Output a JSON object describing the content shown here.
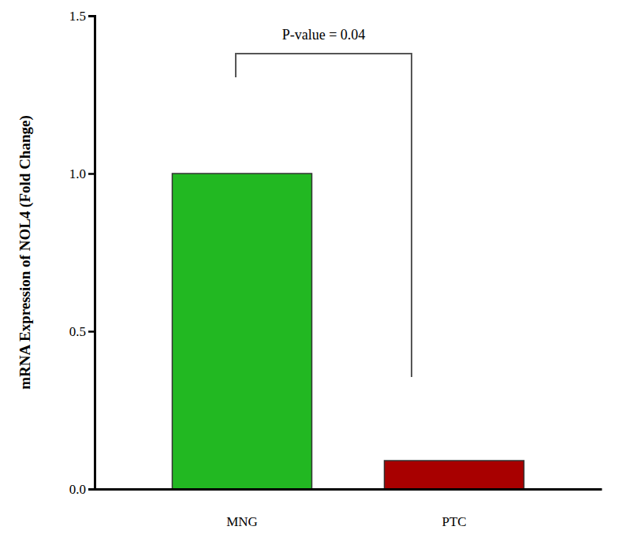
{
  "chart_data": {
    "type": "bar",
    "y_label": "mRNA Expression of NOL4 (Fold Change)",
    "annotation": "P-value = 0.04",
    "categories": [
      "MNG",
      "PTC"
    ],
    "values": [
      1.0,
      0.09
    ],
    "colors": [
      "#22b822",
      "#a80000"
    ],
    "ylim": [
      0,
      1.5
    ],
    "yticks": [
      {
        "value": 0,
        "label": "0.0"
      },
      {
        "value": 0.5,
        "label": "0.5"
      },
      {
        "value": 1.0,
        "label": "1.0"
      },
      {
        "value": 1.5,
        "label": "1.5"
      }
    ],
    "grid": false
  }
}
